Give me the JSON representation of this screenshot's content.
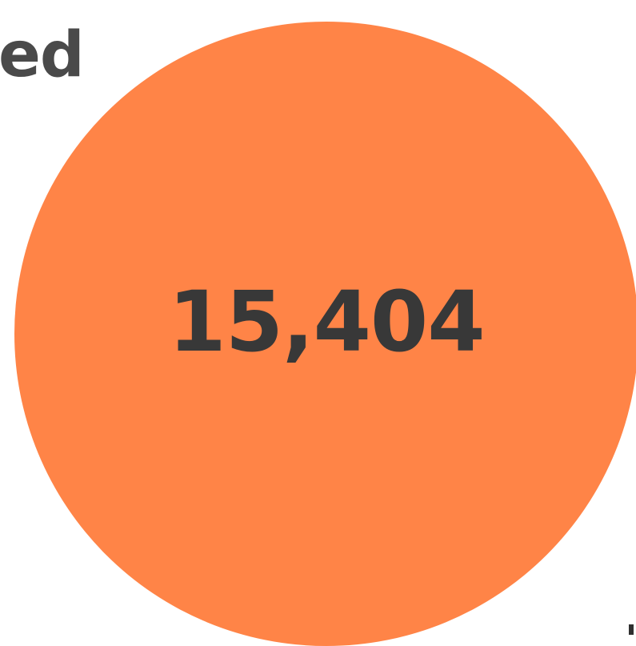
{
  "heading": {
    "text": "ed"
  },
  "stat": {
    "value": "15,404"
  },
  "colors": {
    "circle": "#ff8447",
    "value_text": "#383838",
    "heading_text": "#4a4a4a",
    "background": "#ffffff"
  }
}
